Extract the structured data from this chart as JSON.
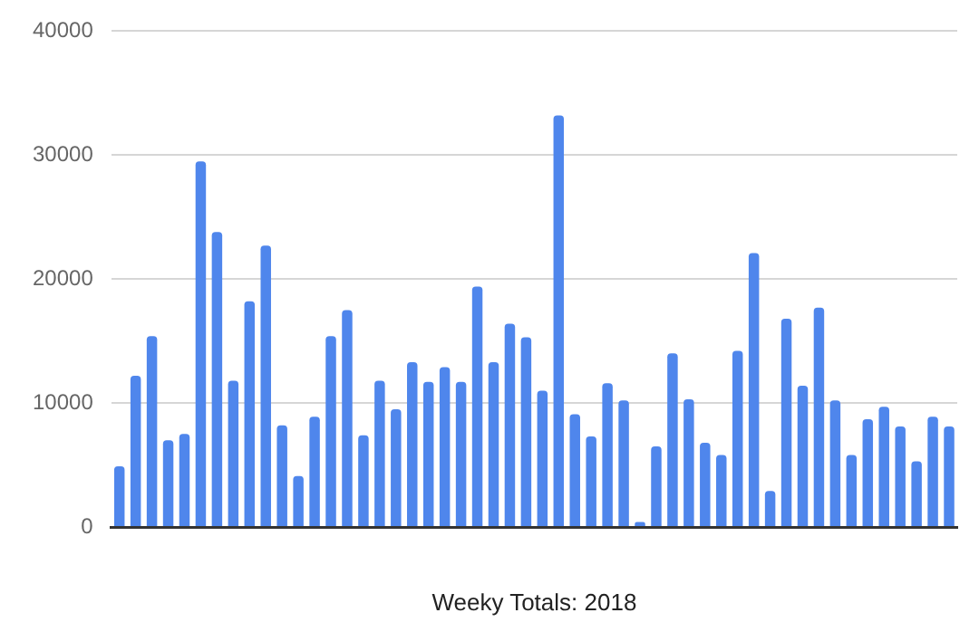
{
  "chart_data": {
    "type": "bar",
    "xlabel": "Weeky Totals: 2018",
    "categories": [
      null,
      null,
      null,
      null,
      null,
      null,
      null,
      null,
      null,
      null,
      null,
      null,
      null,
      null,
      null,
      null,
      null,
      null,
      null,
      null,
      null,
      null,
      null,
      null,
      null,
      null,
      null,
      null,
      null,
      null,
      null,
      null,
      null,
      null,
      null,
      null,
      null,
      null,
      null,
      null,
      null,
      null,
      null,
      null,
      null,
      null,
      null,
      null,
      null,
      null,
      null,
      null
    ],
    "values": [
      4900,
      12200,
      15400,
      7000,
      7500,
      29500,
      23800,
      11800,
      18200,
      22700,
      8200,
      4100,
      8900,
      15400,
      17500,
      7400,
      11800,
      9500,
      13300,
      11700,
      12900,
      11700,
      19400,
      13300,
      16400,
      15300,
      11000,
      33200,
      9100,
      7300,
      11600,
      10200,
      400,
      6500,
      14000,
      10300,
      6800,
      5800,
      14200,
      22100,
      2900,
      16800,
      11400,
      17700,
      10200,
      5800,
      8700,
      9700,
      8100,
      5300,
      8900,
      8100
    ],
    "color": "#4f86ec",
    "ylim": [
      0,
      40000
    ],
    "yticks": [
      0,
      10000,
      20000,
      30000,
      40000
    ],
    "grid": "y",
    "legend": false
  }
}
